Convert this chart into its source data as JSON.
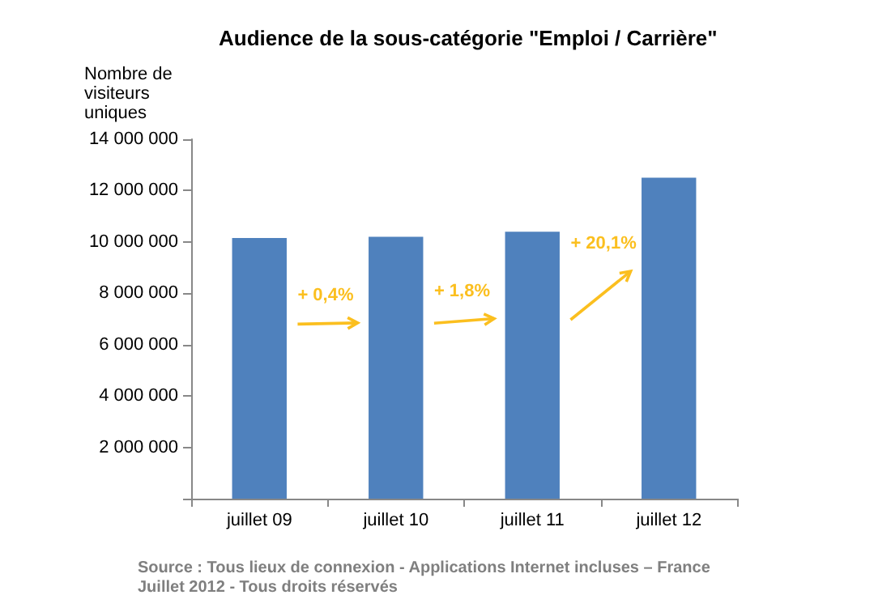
{
  "chart_data": {
    "type": "bar",
    "title": "Audience de la sous-catégorie \"Emploi / Carrière\"",
    "ylabel": "Nombre de visiteurs uniques",
    "categories": [
      "juillet 09",
      "juillet 10",
      "juillet 11",
      "juillet 12"
    ],
    "values": [
      10150000,
      10200000,
      10400000,
      12500000
    ],
    "color": "#4f81bd",
    "ylim": [
      0,
      14000000
    ],
    "yticks": [
      {
        "value": 0,
        "label": null
      },
      {
        "value": 2000000,
        "label": "2 000 000"
      },
      {
        "value": 4000000,
        "label": "4 000 000"
      },
      {
        "value": 6000000,
        "label": "6 000 000"
      },
      {
        "value": 8000000,
        "label": "8 000 000"
      },
      {
        "value": 10000000,
        "label": "10 000 000"
      },
      {
        "value": 12000000,
        "label": "12 000 000"
      },
      {
        "value": 14000000,
        "label": "14 000 000"
      }
    ],
    "annotations": [
      "+ 0,4%",
      "+ 1,8%",
      "+ 20,1%",
      "Source : Tous lieux de connexion - Applications Internet incluses – France Juillet 2012 - Tous droits réservés"
    ],
    "grid": false
  }
}
